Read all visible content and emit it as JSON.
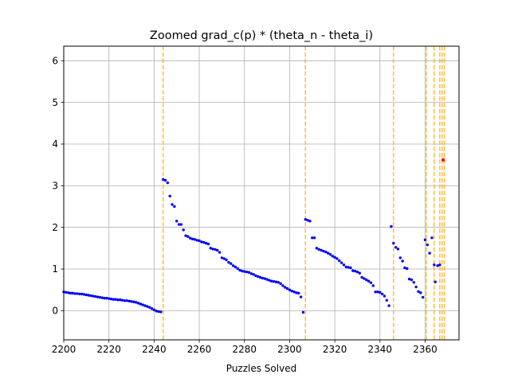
{
  "chart_data": {
    "type": "scatter",
    "title": "Zoomed grad_c(p) * (theta_n - theta_i)",
    "xlabel": "Puzzles Solved",
    "ylabel": "",
    "xlim": [
      2200,
      2375
    ],
    "ylim": [
      -0.7,
      6.35
    ],
    "xticks": [
      2200,
      2220,
      2240,
      2260,
      2280,
      2300,
      2320,
      2340,
      2360
    ],
    "yticks": [
      0,
      1,
      2,
      3,
      4,
      5,
      6
    ],
    "grid": true,
    "legend": "none",
    "point_color": "#0000ff",
    "vline_color": "#ffa500",
    "vlines": [
      2244,
      2307,
      2346,
      2360.5,
      2364,
      2366.5,
      2367.5,
      2368.5
    ],
    "highlight": {
      "x": 2368,
      "y": 3.62,
      "color": "#ff0000"
    },
    "series": [
      {
        "points": [
          [
            2200,
            0.45
          ],
          [
            2201,
            0.44
          ],
          [
            2202,
            0.43
          ],
          [
            2203,
            0.42
          ],
          [
            2204,
            0.42
          ],
          [
            2205,
            0.41
          ],
          [
            2206,
            0.41
          ],
          [
            2207,
            0.4
          ],
          [
            2208,
            0.4
          ],
          [
            2209,
            0.39
          ],
          [
            2210,
            0.38
          ],
          [
            2211,
            0.37
          ],
          [
            2212,
            0.36
          ],
          [
            2213,
            0.35
          ],
          [
            2214,
            0.34
          ],
          [
            2215,
            0.33
          ],
          [
            2216,
            0.32
          ],
          [
            2217,
            0.31
          ],
          [
            2218,
            0.3
          ],
          [
            2219,
            0.3
          ],
          [
            2220,
            0.29
          ],
          [
            2221,
            0.28
          ],
          [
            2222,
            0.27
          ],
          [
            2223,
            0.27
          ],
          [
            2224,
            0.26
          ],
          [
            2225,
            0.26
          ],
          [
            2226,
            0.25
          ],
          [
            2227,
            0.24
          ],
          [
            2228,
            0.24
          ],
          [
            2229,
            0.23
          ],
          [
            2230,
            0.22
          ],
          [
            2231,
            0.21
          ],
          [
            2232,
            0.2
          ],
          [
            2233,
            0.18
          ],
          [
            2234,
            0.16
          ],
          [
            2235,
            0.14
          ],
          [
            2236,
            0.12
          ],
          [
            2237,
            0.1
          ],
          [
            2238,
            0.08
          ],
          [
            2239,
            0.05
          ],
          [
            2240,
            0.02
          ],
          [
            2241,
            -0.01
          ],
          [
            2242,
            -0.02
          ],
          [
            2243,
            -0.03
          ],
          [
            2244,
            3.15
          ],
          [
            2245,
            3.13
          ],
          [
            2246,
            3.07
          ],
          [
            2247,
            2.75
          ],
          [
            2248,
            2.55
          ],
          [
            2249,
            2.5
          ],
          [
            2250,
            2.15
          ],
          [
            2251,
            2.07
          ],
          [
            2252,
            2.07
          ],
          [
            2253,
            1.94
          ],
          [
            2254,
            1.8
          ],
          [
            2255,
            1.78
          ],
          [
            2256,
            1.74
          ],
          [
            2257,
            1.72
          ],
          [
            2258,
            1.71
          ],
          [
            2259,
            1.69
          ],
          [
            2260,
            1.68
          ],
          [
            2261,
            1.65
          ],
          [
            2262,
            1.64
          ],
          [
            2263,
            1.62
          ],
          [
            2264,
            1.6
          ],
          [
            2265,
            1.5
          ],
          [
            2266,
            1.48
          ],
          [
            2267,
            1.47
          ],
          [
            2268,
            1.45
          ],
          [
            2269,
            1.4
          ],
          [
            2270,
            1.27
          ],
          [
            2271,
            1.25
          ],
          [
            2272,
            1.22
          ],
          [
            2273,
            1.16
          ],
          [
            2274,
            1.13
          ],
          [
            2275,
            1.08
          ],
          [
            2276,
            1.05
          ],
          [
            2277,
            1.01
          ],
          [
            2278,
            0.97
          ],
          [
            2279,
            0.95
          ],
          [
            2280,
            0.94
          ],
          [
            2281,
            0.93
          ],
          [
            2282,
            0.92
          ],
          [
            2283,
            0.89
          ],
          [
            2284,
            0.87
          ],
          [
            2285,
            0.84
          ],
          [
            2286,
            0.82
          ],
          [
            2287,
            0.8
          ],
          [
            2288,
            0.78
          ],
          [
            2289,
            0.77
          ],
          [
            2290,
            0.75
          ],
          [
            2291,
            0.73
          ],
          [
            2292,
            0.71
          ],
          [
            2293,
            0.7
          ],
          [
            2294,
            0.69
          ],
          [
            2295,
            0.68
          ],
          [
            2296,
            0.65
          ],
          [
            2297,
            0.6
          ],
          [
            2298,
            0.56
          ],
          [
            2299,
            0.53
          ],
          [
            2300,
            0.5
          ],
          [
            2301,
            0.47
          ],
          [
            2302,
            0.45
          ],
          [
            2303,
            0.43
          ],
          [
            2304,
            0.42
          ],
          [
            2305,
            0.33
          ],
          [
            2306,
            -0.04
          ],
          [
            2307,
            2.19
          ],
          [
            2308,
            2.17
          ],
          [
            2309,
            2.15
          ],
          [
            2310,
            1.75
          ],
          [
            2311,
            1.75
          ],
          [
            2312,
            1.5
          ],
          [
            2313,
            1.47
          ],
          [
            2314,
            1.45
          ],
          [
            2315,
            1.43
          ],
          [
            2316,
            1.41
          ],
          [
            2317,
            1.38
          ],
          [
            2318,
            1.35
          ],
          [
            2319,
            1.31
          ],
          [
            2320,
            1.28
          ],
          [
            2321,
            1.25
          ],
          [
            2322,
            1.2
          ],
          [
            2323,
            1.15
          ],
          [
            2324,
            1.1
          ],
          [
            2325,
            1.05
          ],
          [
            2326,
            1.04
          ],
          [
            2327,
            1.03
          ],
          [
            2328,
            0.96
          ],
          [
            2329,
            0.95
          ],
          [
            2330,
            0.93
          ],
          [
            2331,
            0.9
          ],
          [
            2332,
            0.8
          ],
          [
            2333,
            0.77
          ],
          [
            2334,
            0.74
          ],
          [
            2335,
            0.71
          ],
          [
            2336,
            0.67
          ],
          [
            2337,
            0.6
          ],
          [
            2338,
            0.45
          ],
          [
            2339,
            0.45
          ],
          [
            2340,
            0.44
          ],
          [
            2341,
            0.4
          ],
          [
            2342,
            0.35
          ],
          [
            2343,
            0.25
          ],
          [
            2344,
            0.12
          ],
          [
            2345,
            2.02
          ],
          [
            2346,
            1.62
          ],
          [
            2347,
            1.52
          ],
          [
            2348,
            1.48
          ],
          [
            2349,
            1.27
          ],
          [
            2350,
            1.19
          ],
          [
            2351,
            1.03
          ],
          [
            2352,
            1.01
          ],
          [
            2353,
            0.76
          ],
          [
            2354,
            0.74
          ],
          [
            2355,
            0.68
          ],
          [
            2356,
            0.57
          ],
          [
            2357,
            0.46
          ],
          [
            2358,
            0.43
          ],
          [
            2359,
            0.32
          ],
          [
            2360,
            1.7
          ],
          [
            2361,
            1.58
          ],
          [
            2362,
            1.38
          ],
          [
            2363,
            1.75
          ],
          [
            2364,
            1.1
          ],
          [
            2364.5,
            0.69
          ],
          [
            2365.5,
            1.08
          ],
          [
            2366.5,
            1.1
          ],
          [
            2368,
            3.62
          ]
        ]
      }
    ]
  }
}
